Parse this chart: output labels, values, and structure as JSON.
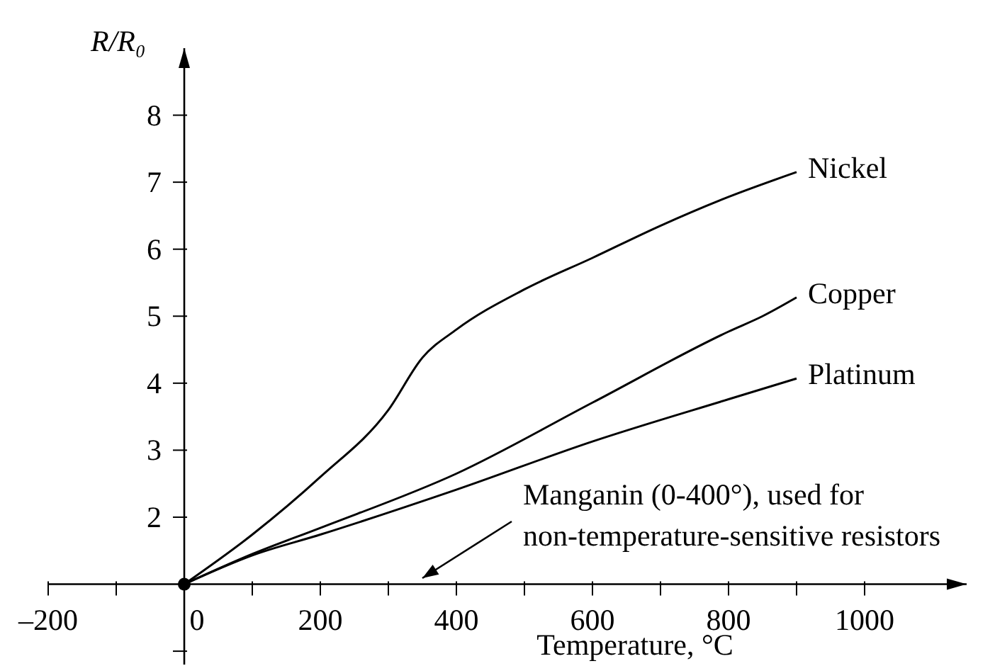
{
  "chart_data": {
    "type": "line",
    "xlabel": "Temperature, °C",
    "ylabel": "R/R₀",
    "xlim": [
      -200,
      1150
    ],
    "ylim": [
      -0.2,
      9
    ],
    "xticks": [
      {
        "value": -200,
        "label": "–200"
      },
      0,
      200,
      400,
      600,
      800,
      1000
    ],
    "yticks": [
      {
        "value": 0,
        "label": null
      },
      2,
      3,
      4,
      5,
      6,
      7,
      8
    ],
    "line_style": "solid",
    "series": [
      {
        "name": "Nickel",
        "color": "#000000",
        "x": [
          0,
          100,
          200,
          300,
          350,
          400,
          500,
          600,
          700,
          800,
          900
        ],
        "values": [
          1,
          1.74,
          2.6,
          3.6,
          4.38,
          4.8,
          5.4,
          5.87,
          6.35,
          6.78,
          7.15
        ]
      },
      {
        "name": "Copper",
        "color": "#000000",
        "x": [
          0,
          100,
          200,
          400,
          600,
          800,
          850,
          900
        ],
        "values": [
          1,
          1.45,
          1.84,
          2.65,
          3.71,
          4.77,
          5.0,
          5.28
        ]
      },
      {
        "name": "Platinum",
        "color": "#000000",
        "x": [
          0,
          100,
          200,
          400,
          600,
          800,
          900
        ],
        "values": [
          1,
          1.43,
          1.74,
          2.41,
          3.13,
          3.76,
          4.07
        ]
      },
      {
        "type": "scatter",
        "color": "#000000",
        "marker": "circle",
        "x": [
          0
        ],
        "values": [
          1
        ]
      }
    ],
    "annotations": [
      "Manganin (0-400°), used for non-temperature-sensitive resistors"
    ]
  }
}
